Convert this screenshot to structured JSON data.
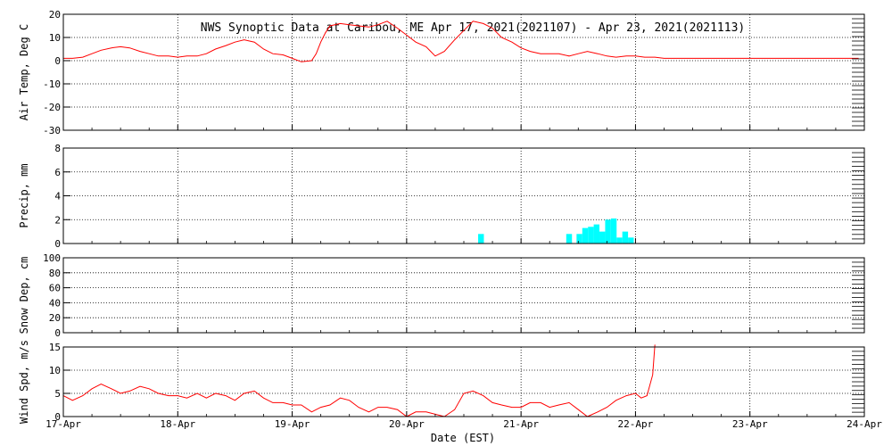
{
  "chart_data": {
    "title": "NWS Synoptic Data at Caribou, ME   Apr 17, 2021(2021107) - Apr 23, 2021(2021113)",
    "xlabel": "Date (EST)",
    "x_ticks": [
      "17-Apr",
      "18-Apr",
      "19-Apr",
      "20-Apr",
      "21-Apr",
      "22-Apr",
      "23-Apr",
      "24-Apr"
    ],
    "x_range_days": [
      0,
      7
    ],
    "colors": {
      "temperature": "#ff0000",
      "precipitation": "#00ffff",
      "wind": "#ff0000",
      "axes": "#000000",
      "grid": "#000000"
    },
    "panels": [
      {
        "name": "air-temp",
        "type": "line",
        "ylabel": "Air Temp, Deg C",
        "ylim": [
          -30,
          20
        ],
        "yticks": [
          20,
          10,
          0,
          -10,
          -20,
          -30
        ],
        "series": [
          {
            "x": [
              0.0,
              0.08,
              0.17,
              0.25,
              0.33,
              0.42,
              0.5,
              0.58,
              0.67,
              0.75,
              0.83,
              0.92,
              1.0,
              1.08,
              1.17,
              1.25,
              1.33,
              1.42,
              1.5,
              1.58,
              1.67,
              1.75,
              1.83,
              1.92,
              2.0,
              2.08,
              2.17,
              2.21,
              2.25,
              2.29,
              2.33,
              2.42,
              2.5,
              2.58,
              2.67,
              2.75,
              2.83,
              2.92,
              3.0,
              3.08,
              3.17,
              3.21,
              3.25,
              3.29,
              3.33,
              3.42,
              3.5,
              3.58,
              3.67,
              3.75,
              3.83,
              3.92,
              4.0,
              4.08,
              4.17,
              4.25,
              4.33,
              4.42,
              4.5,
              4.58,
              4.67,
              4.75,
              4.83,
              4.92,
              5.0,
              5.08,
              5.17,
              5.25,
              5.5,
              5.75,
              6.0,
              6.25,
              6.5,
              6.75,
              6.95
            ],
            "values": [
              1,
              1,
              1.5,
              3,
              4.5,
              5.5,
              6,
              5.5,
              4,
              3,
              2,
              2,
              1.5,
              2,
              2,
              3,
              5,
              6.5,
              8,
              9,
              8,
              5,
              3,
              2.5,
              1,
              -0.5,
              0,
              3,
              8,
              12,
              15,
              16,
              15.5,
              15,
              14.5,
              15.5,
              17,
              14,
              11,
              8,
              6,
              4,
              2,
              3,
              4,
              9,
              13,
              17,
              16,
              14,
              10,
              8,
              5.5,
              4,
              3,
              3,
              3,
              2,
              3,
              4,
              3,
              2,
              1.5,
              2,
              2,
              1.5,
              1.5,
              1,
              1,
              1,
              1,
              1,
              1,
              1,
              1
            ]
          }
        ]
      },
      {
        "name": "precip",
        "type": "bar",
        "ylabel": "Precip, mm",
        "ylim": [
          0,
          8
        ],
        "yticks": [
          8,
          6,
          4,
          2,
          0
        ],
        "series": [
          {
            "x": [
              3.65,
              4.42,
              4.51,
              4.56,
              4.61,
              4.66,
              4.71,
              4.76,
              4.81,
              4.86,
              4.91,
              4.96
            ],
            "values": [
              0.8,
              0.8,
              0.8,
              1.3,
              1.4,
              1.6,
              1.0,
              2.0,
              2.1,
              0.5,
              1.0,
              0.5
            ]
          }
        ]
      },
      {
        "name": "snow-depth",
        "type": "line",
        "ylabel": "Snow Dep, cm",
        "ylim": [
          0,
          100
        ],
        "yticks": [
          100,
          80,
          60,
          40,
          20,
          0
        ],
        "series": []
      },
      {
        "name": "wind-speed",
        "type": "line",
        "ylabel": "Wind Spd, m/s",
        "ylim": [
          0,
          15
        ],
        "yticks": [
          15,
          10,
          5,
          0
        ],
        "series": [
          {
            "x": [
              0.0,
              0.08,
              0.17,
              0.25,
              0.33,
              0.42,
              0.5,
              0.58,
              0.67,
              0.75,
              0.83,
              0.92,
              1.0,
              1.08,
              1.17,
              1.25,
              1.33,
              1.42,
              1.5,
              1.58,
              1.67,
              1.75,
              1.83,
              1.92,
              2.0,
              2.08,
              2.17,
              2.25,
              2.33,
              2.42,
              2.5,
              2.58,
              2.67,
              2.75,
              2.83,
              2.92,
              3.0,
              3.08,
              3.17,
              3.25,
              3.33,
              3.42,
              3.5,
              3.58,
              3.67,
              3.75,
              3.83,
              3.92,
              4.0,
              4.08,
              4.17,
              4.25,
              4.33,
              4.42,
              4.5,
              4.58,
              4.67,
              4.75,
              4.83,
              4.92,
              5.0,
              5.05,
              5.1,
              5.15,
              5.17
            ],
            "values": [
              4.5,
              3.5,
              4.5,
              6,
              7,
              6,
              5,
              5.5,
              6.5,
              6,
              5,
              4.5,
              4.5,
              4,
              5,
              4,
              5,
              4.5,
              3.5,
              5,
              5.5,
              4,
              3,
              3,
              2.5,
              2.5,
              1,
              2,
              2.5,
              4,
              3.5,
              2,
              1,
              2,
              2,
              1.5,
              0,
              1,
              1,
              0.5,
              0,
              1.5,
              5,
              5.5,
              4.5,
              3,
              2.5,
              2,
              2,
              3,
              3,
              2,
              2.5,
              3,
              1.5,
              0,
              1,
              2,
              3.5,
              4.5,
              5,
              4,
              4.5,
              9,
              15.5
            ]
          }
        ]
      }
    ]
  }
}
